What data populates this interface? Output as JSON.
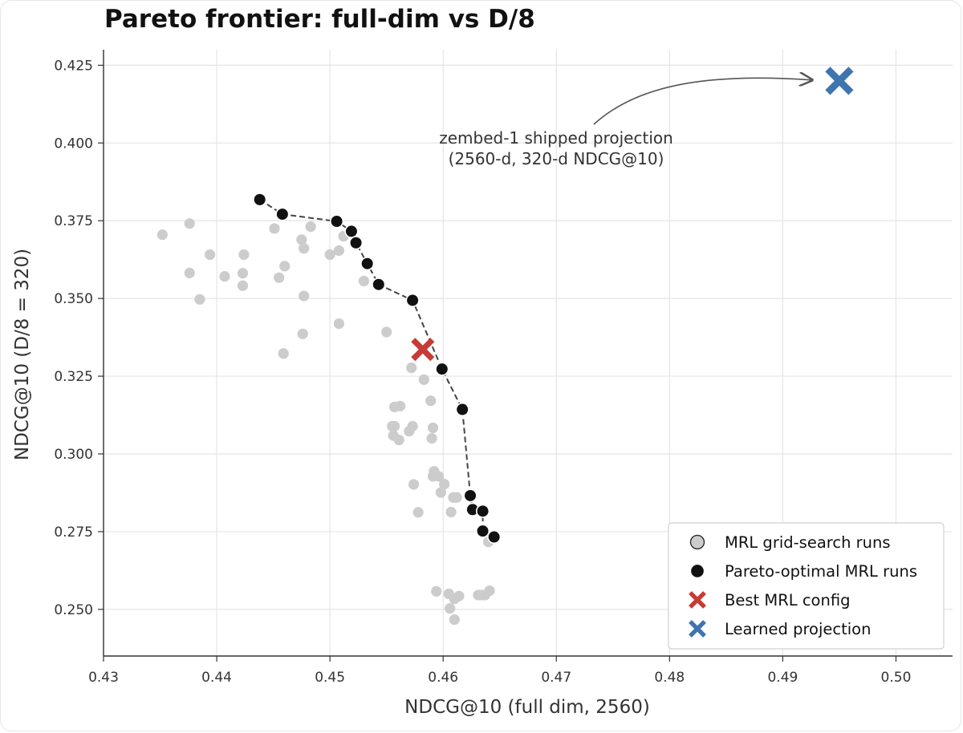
{
  "chart_data": {
    "type": "scatter",
    "title": "Pareto frontier: full-dim vs D/8",
    "xlabel": "NDCG@10 (full dim, 2560)",
    "ylabel": "NDCG@10 (D/8 = 320)",
    "xlim": [
      0.43,
      0.505
    ],
    "ylim": [
      0.235,
      0.43
    ],
    "xticks": [
      0.43,
      0.44,
      0.45,
      0.46,
      0.47,
      0.48,
      0.49,
      0.5
    ],
    "xtick_labels": [
      "0.43",
      "0.44",
      "0.45",
      "0.46",
      "0.47",
      "0.48",
      "0.49",
      "0.50"
    ],
    "yticks": [
      0.25,
      0.275,
      0.3,
      0.325,
      0.35,
      0.375,
      0.4,
      0.425
    ],
    "ytick_labels": [
      "0.250",
      "0.275",
      "0.300",
      "0.325",
      "0.350",
      "0.375",
      "0.400",
      "0.425"
    ],
    "grid": true,
    "legend_position": "bottom-right",
    "series": [
      {
        "name": "MRL grid-search runs",
        "color": "#cccccc",
        "marker": "circle",
        "points": [
          [
            0.4352,
            0.3705
          ],
          [
            0.4376,
            0.3741
          ],
          [
            0.4376,
            0.3582
          ],
          [
            0.4394,
            0.3641
          ],
          [
            0.4385,
            0.3497
          ],
          [
            0.4407,
            0.3571
          ],
          [
            0.4424,
            0.3641
          ],
          [
            0.4423,
            0.3581
          ],
          [
            0.4423,
            0.3541
          ],
          [
            0.4451,
            0.3725
          ],
          [
            0.4455,
            0.3567
          ],
          [
            0.446,
            0.3604
          ],
          [
            0.4459,
            0.3323
          ],
          [
            0.4475,
            0.3689
          ],
          [
            0.4477,
            0.3661
          ],
          [
            0.4477,
            0.3508
          ],
          [
            0.4476,
            0.3386
          ],
          [
            0.4483,
            0.3731
          ],
          [
            0.45,
            0.3641
          ],
          [
            0.4508,
            0.3654
          ],
          [
            0.4508,
            0.3419
          ],
          [
            0.4512,
            0.37
          ],
          [
            0.453,
            0.3556
          ],
          [
            0.455,
            0.3392
          ],
          [
            0.4555,
            0.3089
          ],
          [
            0.4556,
            0.3059
          ],
          [
            0.4557,
            0.3089
          ],
          [
            0.4557,
            0.3151
          ],
          [
            0.4561,
            0.3045
          ],
          [
            0.4562,
            0.3154
          ],
          [
            0.457,
            0.3073
          ],
          [
            0.4573,
            0.3089
          ],
          [
            0.4572,
            0.3277
          ],
          [
            0.4574,
            0.2902
          ],
          [
            0.4578,
            0.2812
          ],
          [
            0.4583,
            0.3239
          ],
          [
            0.4589,
            0.3171
          ],
          [
            0.459,
            0.305
          ],
          [
            0.4591,
            0.3084
          ],
          [
            0.4591,
            0.2928
          ],
          [
            0.4592,
            0.2944
          ],
          [
            0.4594,
            0.2558
          ],
          [
            0.4596,
            0.2928
          ],
          [
            0.4598,
            0.2876
          ],
          [
            0.4601,
            0.2903
          ],
          [
            0.4605,
            0.255
          ],
          [
            0.4607,
            0.2813
          ],
          [
            0.4606,
            0.2503
          ],
          [
            0.4609,
            0.286
          ],
          [
            0.461,
            0.2534
          ],
          [
            0.461,
            0.2467
          ],
          [
            0.4612,
            0.286
          ],
          [
            0.4614,
            0.2543
          ],
          [
            0.4631,
            0.2546
          ],
          [
            0.4634,
            0.2546
          ],
          [
            0.4637,
            0.2546
          ],
          [
            0.464,
            0.2717
          ],
          [
            0.4641,
            0.256
          ]
        ]
      },
      {
        "name": "Pareto-optimal MRL runs",
        "color": "#111111",
        "marker": "circle",
        "frontier_line": true,
        "points": [
          [
            0.4438,
            0.3818
          ],
          [
            0.4458,
            0.3771
          ],
          [
            0.4506,
            0.3748
          ],
          [
            0.4519,
            0.3716
          ],
          [
            0.4523,
            0.3679
          ],
          [
            0.4533,
            0.3612
          ],
          [
            0.4543,
            0.3545
          ],
          [
            0.4573,
            0.3494
          ],
          [
            0.4599,
            0.3273
          ],
          [
            0.4617,
            0.3143
          ],
          [
            0.4624,
            0.2866
          ],
          [
            0.4626,
            0.2821
          ],
          [
            0.4635,
            0.2816
          ],
          [
            0.4635,
            0.2752
          ],
          [
            0.4645,
            0.2733
          ]
        ]
      },
      {
        "name": "Best MRL config",
        "color": "#c83a35",
        "marker": "x",
        "points": [
          [
            0.4582,
            0.3336
          ]
        ]
      },
      {
        "name": "Learned projection",
        "color": "#3d75b0",
        "marker": "x",
        "points": [
          [
            0.495,
            0.42
          ]
        ]
      }
    ],
    "annotation": {
      "lines": [
        "zembed-1 shipped projection",
        "(2560-d, 320-d NDCG@10)"
      ],
      "arrow_to": [
        0.495,
        0.42
      ]
    }
  }
}
